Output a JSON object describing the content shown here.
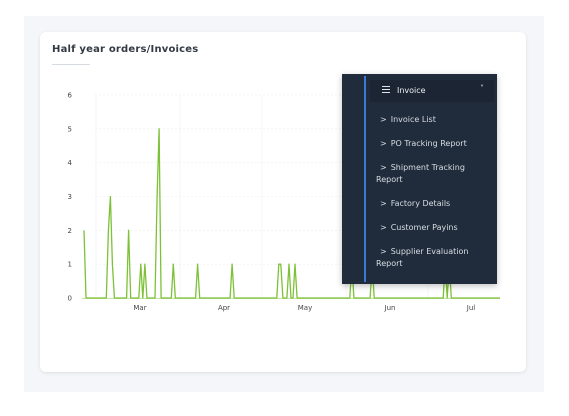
{
  "card": {
    "title": "Half year orders/Invoices"
  },
  "chart_data": {
    "type": "line",
    "series": [
      {
        "color": "#7cc137",
        "points": [
          [
            0,
            2
          ],
          [
            2,
            0
          ],
          [
            22,
            0
          ],
          [
            24,
            2
          ],
          [
            26,
            3
          ],
          [
            28,
            1
          ],
          [
            30,
            0
          ],
          [
            42,
            0
          ],
          [
            44,
            2
          ],
          [
            46,
            0
          ],
          [
            54,
            0
          ],
          [
            56,
            1
          ],
          [
            58,
            0
          ],
          [
            60,
            1
          ],
          [
            62,
            0
          ],
          [
            70,
            0
          ],
          [
            72,
            3
          ],
          [
            74,
            5
          ],
          [
            76,
            0
          ],
          [
            86,
            0
          ],
          [
            88,
            1
          ],
          [
            90,
            0
          ],
          [
            110,
            0
          ],
          [
            112,
            1
          ],
          [
            114,
            0
          ],
          [
            144,
            0
          ],
          [
            146,
            1
          ],
          [
            148,
            0
          ],
          [
            190,
            0
          ],
          [
            192,
            1
          ],
          [
            194,
            1
          ],
          [
            196,
            0
          ],
          [
            200,
            0
          ],
          [
            202,
            1
          ],
          [
            204,
            0
          ],
          [
            206,
            0
          ],
          [
            208,
            1
          ],
          [
            210,
            0
          ],
          [
            262,
            0
          ],
          [
            264,
            1
          ],
          [
            266,
            0
          ],
          [
            282,
            0
          ],
          [
            284,
            1
          ],
          [
            286,
            0
          ],
          [
            354,
            0
          ],
          [
            356,
            1
          ],
          [
            358,
            0
          ],
          [
            360,
            1
          ],
          [
            362,
            0
          ],
          [
            410,
            0
          ]
        ]
      }
    ],
    "ylim": [
      0,
      6
    ],
    "y_ticks": [
      "0",
      "1",
      "2",
      "3",
      "4",
      "5",
      "6"
    ],
    "x_ticks": [
      "Mar",
      "Apr",
      "May",
      "Jun",
      "Jul"
    ],
    "grid": true
  },
  "menu": {
    "header": "Invoice",
    "chevron": "˅",
    "items": [
      {
        "caret": ">",
        "label": "Invoice List"
      },
      {
        "caret": ">",
        "label": "PO Tracking Report"
      },
      {
        "caret": ">",
        "label_line1": "Shipment Tracking",
        "label_line2": "Report"
      },
      {
        "caret": ">",
        "label": "Factory Details"
      },
      {
        "caret": ">",
        "label": "Customer Payins"
      },
      {
        "caret": ">",
        "label_line1": "Supplier Evaluation",
        "label_line2": "Report"
      }
    ]
  }
}
